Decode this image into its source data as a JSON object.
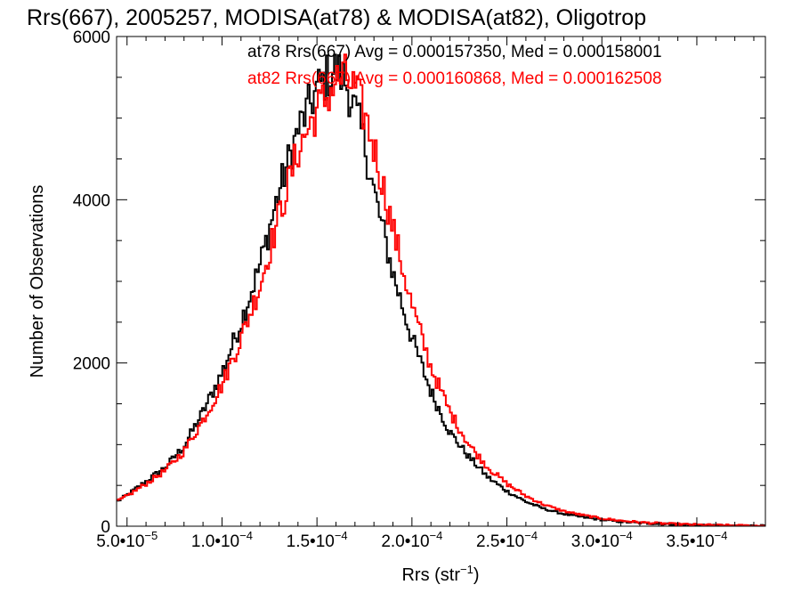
{
  "chart_data": {
    "type": "histogram",
    "title": "Rrs(667), 2005257, MODISA(at78) & MODISA(at82), Oligotrop",
    "xlabel": {
      "base": "Rrs (str",
      "sup": "−1",
      "close": ")"
    },
    "ylabel": "Number of Observations",
    "xlim": [
      4.45e-05,
      0.0003861
    ],
    "ylim": [
      0,
      6000
    ],
    "grid": false,
    "x_ticks": [
      {
        "value": 5e-05,
        "mant": "5.0•10",
        "exp": "−5"
      },
      {
        "value": 0.0001,
        "mant": "1.0•10",
        "exp": "−4"
      },
      {
        "value": 0.00015,
        "mant": "1.5•10",
        "exp": "−4"
      },
      {
        "value": 0.0002,
        "mant": "2.0•10",
        "exp": "−4"
      },
      {
        "value": 0.00025,
        "mant": "2.5•10",
        "exp": "−4"
      },
      {
        "value": 0.0003,
        "mant": "3.0•10",
        "exp": "−4"
      },
      {
        "value": 0.00035,
        "mant": "3.5•10",
        "exp": "−4"
      }
    ],
    "y_ticks": [
      0,
      2000,
      4000,
      6000
    ],
    "legend": [
      {
        "text": "at78 Rrs(667) Avg = 0.000157350, Med = 0.000158001",
        "color": "#000000"
      },
      {
        "text": "at82 Rrs(667) Avg = 0.000160868, Med = 0.000162508",
        "color": "#ff0000"
      }
    ],
    "series": [
      {
        "color": "#000000",
        "x": [
          4.45e-05,
          5e-05,
          6e-05,
          7e-05,
          8e-05,
          9e-05,
          0.0001,
          0.00011,
          0.00012,
          0.00013,
          0.00014,
          0.00015,
          0.000155,
          0.00016,
          0.000165,
          0.00017,
          0.000175,
          0.00018,
          0.00019,
          0.0002,
          0.00021,
          0.00022,
          0.00023,
          0.00024,
          0.00025,
          0.00026,
          0.00027,
          0.00028,
          0.00029,
          0.0003,
          0.00031,
          0.00032,
          0.00033,
          0.00034,
          0.00035,
          0.00036,
          0.00037,
          0.0003861
        ],
        "y": [
          300,
          380,
          550,
          720,
          980,
          1400,
          1880,
          2500,
          3200,
          4100,
          4850,
          5350,
          5500,
          5600,
          5450,
          5100,
          4700,
          4100,
          3100,
          2300,
          1650,
          1150,
          850,
          600,
          430,
          300,
          210,
          150,
          110,
          80,
          55,
          40,
          30,
          22,
          15,
          10,
          6,
          3
        ]
      },
      {
        "color": "#ff0000",
        "x": [
          4.45e-05,
          5e-05,
          6e-05,
          7e-05,
          8e-05,
          9e-05,
          0.0001,
          0.00011,
          0.00012,
          0.00013,
          0.00014,
          0.00015,
          0.000155,
          0.00016,
          0.000165,
          0.00017,
          0.000175,
          0.00018,
          0.00019,
          0.0002,
          0.00021,
          0.00022,
          0.00023,
          0.00024,
          0.00025,
          0.00026,
          0.00027,
          0.00028,
          0.00029,
          0.0003,
          0.00031,
          0.00032,
          0.00033,
          0.00034,
          0.00035,
          0.00036,
          0.00037,
          0.0003861
        ],
        "y": [
          300,
          370,
          520,
          680,
          920,
          1300,
          1730,
          2300,
          2950,
          3800,
          4600,
          5100,
          5250,
          5450,
          5500,
          5350,
          5050,
          4650,
          3650,
          2700,
          1950,
          1400,
          1000,
          720,
          520,
          370,
          260,
          185,
          135,
          95,
          68,
          48,
          35,
          25,
          18,
          12,
          8,
          4
        ]
      }
    ]
  }
}
